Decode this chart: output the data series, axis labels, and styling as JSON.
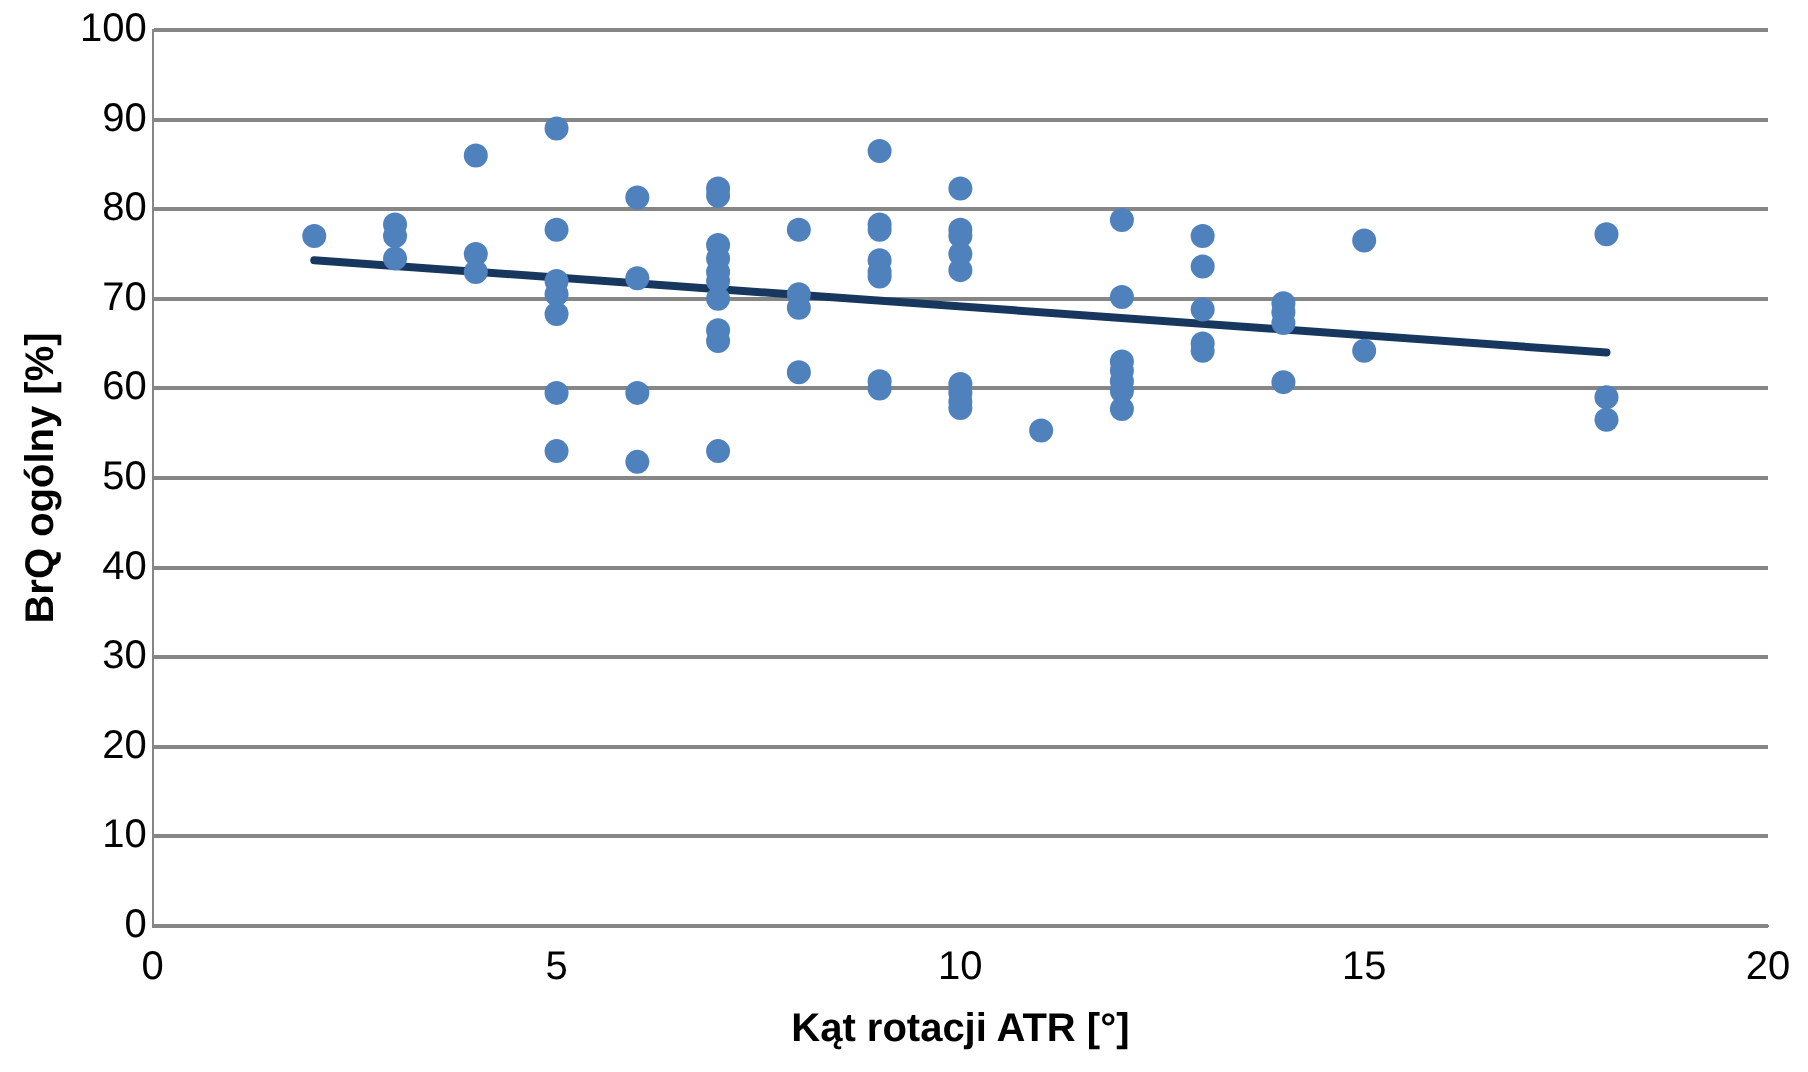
{
  "chart_data": {
    "type": "scatter",
    "xlabel": "Kąt rotacji ATR [°]",
    "ylabel": "BrQ ogólny [%]",
    "xlim": [
      0,
      20
    ],
    "xticks": [
      0,
      5,
      10,
      15,
      20
    ],
    "ylim": [
      0,
      100
    ],
    "yticks": [
      0,
      10,
      20,
      30,
      40,
      50,
      60,
      70,
      80,
      90,
      100
    ],
    "grid": "y",
    "legend": false,
    "marker": "circle",
    "series": [
      {
        "type": "scatter",
        "color": "#4f81bd",
        "x": [
          2,
          3,
          3,
          3,
          4,
          4,
          4,
          5,
          5,
          5,
          5,
          5,
          5,
          5,
          6,
          6,
          6,
          6,
          7,
          7,
          7,
          7,
          7,
          7,
          7,
          7,
          7,
          7,
          8,
          8,
          8,
          8,
          9,
          9,
          9,
          9,
          9,
          9,
          9,
          9,
          10,
          10,
          10,
          10,
          10,
          10,
          10,
          10,
          10,
          11,
          12,
          12,
          12,
          12,
          12,
          12,
          12,
          13,
          13,
          13,
          13,
          13,
          14,
          14,
          14,
          14,
          15,
          15,
          18,
          18,
          18
        ],
        "values": [
          77,
          78.3,
          77,
          74.5,
          86,
          75,
          73,
          89,
          77.7,
          72,
          70.5,
          68.3,
          59.5,
          53,
          81.3,
          72.3,
          59.5,
          51.8,
          82.3,
          81.5,
          76,
          74.5,
          73,
          72,
          70,
          66.5,
          65.3,
          53,
          77.7,
          70.5,
          69,
          61.8,
          86.5,
          78.3,
          77.7,
          74.3,
          73,
          72.5,
          60.8,
          60,
          82.3,
          77.7,
          77,
          75,
          73.2,
          60.5,
          59.5,
          58.5,
          57.8,
          55.3,
          78.8,
          70.2,
          63,
          62,
          60.8,
          59.7,
          57.7,
          77,
          73.6,
          68.8,
          65,
          64.2,
          69.5,
          68.5,
          67.3,
          60.7,
          76.5,
          64.2,
          77.2,
          59,
          56.5
        ]
      },
      {
        "type": "line",
        "color": "#17375e",
        "x": [
          2,
          18
        ],
        "values": [
          74.3,
          64
        ],
        "marker": "none",
        "line_style": "solid"
      }
    ]
  }
}
